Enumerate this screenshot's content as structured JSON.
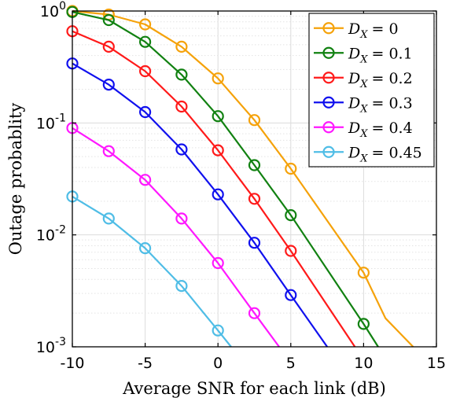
{
  "chart_data": {
    "type": "line",
    "xlabel": "Average SNR for each link (dB)",
    "ylabel": "Outage probablity",
    "xlim": [
      -10,
      15
    ],
    "ylim": [
      0.001,
      1
    ],
    "yscale": "log",
    "grid": true,
    "legend_position": "top-right",
    "x_ticks": [
      "-10",
      "-5",
      "0",
      "5",
      "10",
      "15"
    ],
    "y_ticks": [
      {
        "base": "10",
        "exp": "0"
      },
      {
        "base": "10",
        "exp": "-1"
      },
      {
        "base": "10",
        "exp": "-2"
      },
      {
        "base": "10",
        "exp": "-3"
      }
    ],
    "x": [
      -10,
      -7.5,
      -5,
      -2.5,
      0,
      2.5,
      5,
      7.5,
      10,
      12.5,
      15
    ],
    "series": [
      {
        "name": "D_X = 0",
        "legend_var": "D",
        "legend_sub": "X",
        "legend_val": "= 0",
        "color": "#f5a20a",
        "values": [
          1.0,
          0.93,
          0.76,
          0.48,
          0.25,
          0.106,
          0.039,
          null,
          0.0046,
          null,
          null
        ],
        "line_extend": [
          [
            11.5,
            0.0018
          ],
          [
            13.4,
            0.001
          ]
        ]
      },
      {
        "name": "D_X = 0.1",
        "legend_var": "D",
        "legend_sub": "X",
        "legend_val": "= 0.1",
        "color": "#118111",
        "values": [
          0.98,
          0.83,
          0.53,
          0.27,
          0.115,
          0.042,
          0.015,
          null,
          0.0016,
          null,
          null
        ],
        "line_extend": [
          [
            11.0,
            0.001
          ]
        ]
      },
      {
        "name": "D_X = 0.2",
        "legend_var": "D",
        "legend_sub": "X",
        "legend_val": "= 0.2",
        "color": "#ff1a1a",
        "values": [
          0.66,
          0.48,
          0.29,
          0.14,
          0.057,
          0.021,
          0.0072,
          null,
          null,
          null,
          null
        ],
        "line_extend": [
          [
            9.4,
            0.001
          ]
        ]
      },
      {
        "name": "D_X = 0.3",
        "legend_var": "D",
        "legend_sub": "X",
        "legend_val": "= 0.3",
        "color": "#1010ee",
        "values": [
          0.34,
          0.22,
          0.125,
          0.058,
          0.023,
          0.0085,
          0.0029,
          null,
          null,
          null,
          null
        ],
        "line_extend": [
          [
            7.5,
            0.001
          ]
        ]
      },
      {
        "name": "D_X = 0.4",
        "legend_var": "D",
        "legend_sub": "X",
        "legend_val": "= 0.4",
        "color": "#ff18ff",
        "values": [
          0.09,
          0.056,
          0.031,
          0.014,
          0.0056,
          0.002,
          null,
          null,
          null,
          null,
          null
        ],
        "line_extend": [
          [
            4.2,
            0.001
          ]
        ]
      },
      {
        "name": "D_X = 0.45",
        "legend_var": "D",
        "legend_sub": "X",
        "legend_val": "= 0.45",
        "color": "#4fbde6",
        "values": [
          0.022,
          0.014,
          0.0076,
          0.0035,
          0.0014,
          null,
          null,
          null,
          null,
          null,
          null
        ],
        "line_extend": [
          [
            0.9,
            0.001
          ]
        ]
      }
    ]
  }
}
